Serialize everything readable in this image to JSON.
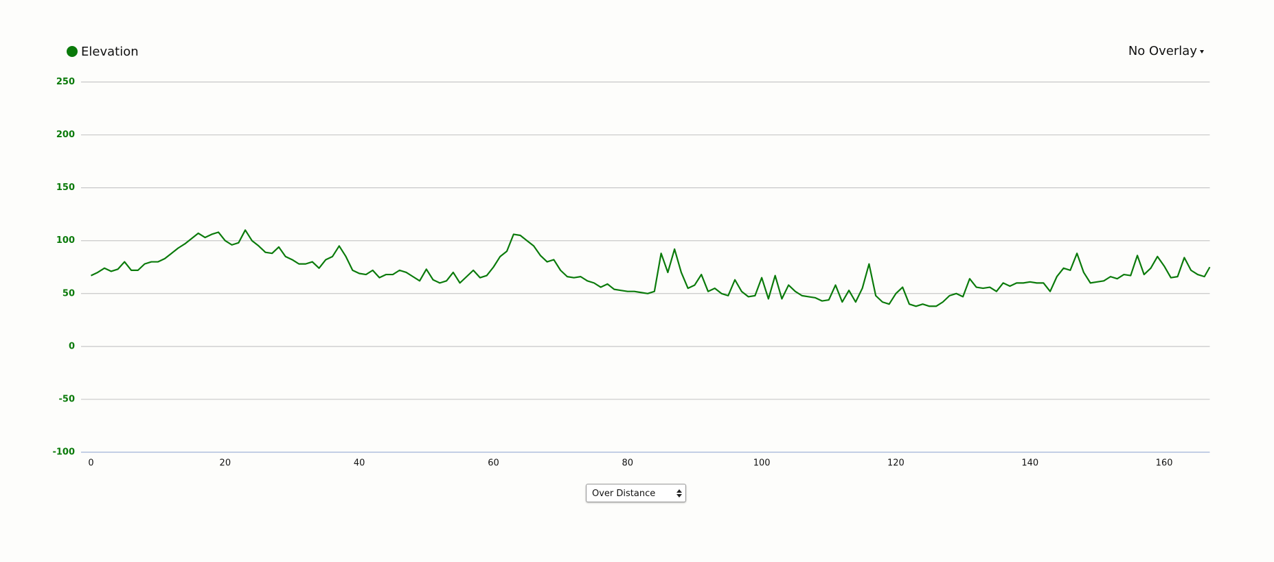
{
  "chart_data": {
    "type": "line",
    "x": [
      0,
      1,
      2,
      3,
      4,
      5,
      6,
      7,
      8,
      9,
      10,
      11,
      12,
      13,
      14,
      15,
      16,
      17,
      18,
      19,
      20,
      21,
      22,
      23,
      24,
      25,
      26,
      27,
      28,
      29,
      30,
      31,
      32,
      33,
      34,
      35,
      36,
      37,
      38,
      39,
      40,
      41,
      42,
      43,
      44,
      45,
      46,
      47,
      48,
      49,
      50,
      51,
      52,
      53,
      54,
      55,
      56,
      57,
      58,
      59,
      60,
      61,
      62,
      63,
      64,
      65,
      66,
      67,
      68,
      69,
      70,
      71,
      72,
      73,
      74,
      75,
      76,
      77,
      78,
      79,
      80,
      81,
      82,
      83,
      84,
      85,
      86,
      87,
      88,
      89,
      90,
      91,
      92,
      93,
      94,
      95,
      96,
      97,
      98,
      99,
      100,
      101,
      102,
      103,
      104,
      105,
      106,
      107,
      108,
      109,
      110,
      111,
      112,
      113,
      114,
      115,
      116,
      117,
      118,
      119,
      120,
      121,
      122,
      123,
      124,
      125,
      126,
      127,
      128,
      129,
      130,
      131,
      132,
      133,
      134,
      135,
      136,
      137,
      138,
      139,
      140,
      141,
      142,
      143,
      144,
      145,
      146,
      147,
      148,
      149,
      150,
      151,
      152,
      153,
      154,
      155,
      156,
      157,
      158,
      159,
      160,
      161,
      162,
      163,
      164,
      165,
      166,
      166.8
    ],
    "series": [
      {
        "name": "Elevation",
        "color": "#0a7a0a",
        "values": [
          67,
          70,
          74,
          71,
          73,
          80,
          72,
          72,
          78,
          80,
          80,
          83,
          88,
          93,
          97,
          102,
          107,
          103,
          106,
          108,
          100,
          96,
          98,
          110,
          100,
          95,
          89,
          88,
          94,
          85,
          82,
          78,
          78,
          80,
          74,
          82,
          85,
          95,
          85,
          72,
          69,
          68,
          72,
          65,
          68,
          68,
          72,
          70,
          66,
          62,
          73,
          63,
          60,
          62,
          70,
          60,
          66,
          72,
          65,
          67,
          75,
          85,
          90,
          106,
          105,
          100,
          95,
          86,
          80,
          82,
          72,
          66,
          65,
          66,
          62,
          60,
          56,
          59,
          54,
          53,
          52,
          52,
          51,
          50,
          52,
          88,
          70,
          92,
          70,
          55,
          58,
          68,
          52,
          55,
          50,
          48,
          63,
          52,
          47,
          48,
          65,
          45,
          67,
          45,
          58,
          52,
          48,
          47,
          46,
          43,
          44,
          58,
          42,
          53,
          42,
          55,
          78,
          48,
          42,
          40,
          50,
          56,
          40,
          38,
          40,
          38,
          38,
          42,
          48,
          50,
          47,
          64,
          56,
          55,
          56,
          52,
          60,
          57,
          60,
          60,
          61,
          60,
          60,
          52,
          66,
          74,
          72,
          88,
          70,
          60,
          61,
          62,
          66,
          64,
          68,
          67,
          86,
          68,
          74,
          85,
          76,
          65,
          66,
          84,
          72,
          68,
          66,
          75
        ]
      }
    ],
    "xlim": [
      0,
      166.8
    ],
    "xticks": [
      0,
      20,
      40,
      60,
      80,
      100,
      120,
      140,
      160
    ],
    "ylim": [
      -100,
      250
    ],
    "yticks": [
      -100,
      -50,
      0,
      50,
      100,
      150,
      200,
      250
    ],
    "grid": true,
    "legend": "top-left"
  },
  "overlay_menu": "No Overlay",
  "x_mode_select": "Over Distance"
}
